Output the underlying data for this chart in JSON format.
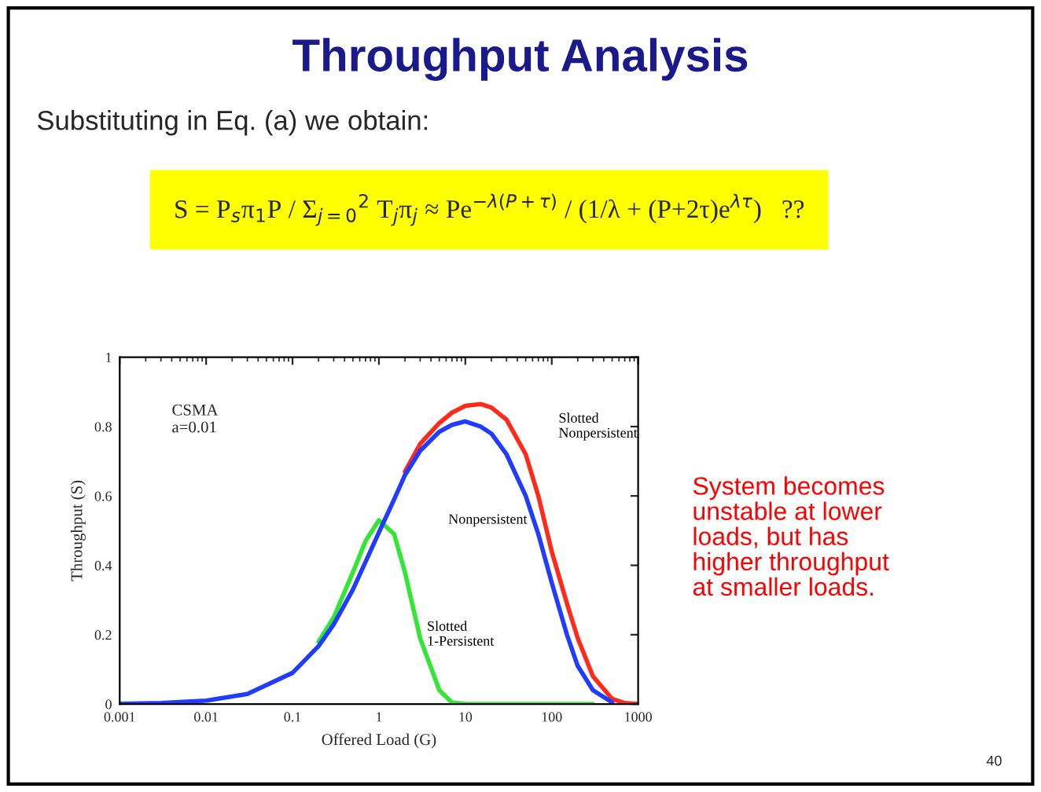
{
  "chart_data": {
    "type": "line",
    "title": "Throughput Analysis",
    "subtitle": "Substituting in Eq. (a) we obtain:",
    "xlabel": "Offered Load (G)",
    "ylabel": "Throughput (S)",
    "log": "x",
    "x": [
      0.001,
      0.003,
      0.01,
      0.03,
      0.1,
      0.2,
      0.3,
      0.5,
      0.7,
      1,
      1.5,
      2,
      3,
      5,
      7,
      10,
      15,
      20,
      30,
      50,
      70,
      100,
      150,
      200,
      300,
      500,
      700,
      1000
    ],
    "series": [
      {
        "name": "Slotted Nonpersistent",
        "color": "#ff2a1a",
        "values": [
          null,
          null,
          null,
          null,
          null,
          null,
          null,
          null,
          null,
          null,
          null,
          0.67,
          0.75,
          0.81,
          0.84,
          0.86,
          0.865,
          0.855,
          0.82,
          0.72,
          0.6,
          0.44,
          0.29,
          0.19,
          0.08,
          0.015,
          0.003,
          0
        ]
      },
      {
        "name": "Nonpersistent",
        "color": "#1f3cff",
        "values": [
          0.001,
          0.003,
          0.01,
          0.029,
          0.09,
          0.167,
          0.23,
          0.33,
          0.41,
          0.495,
          0.59,
          0.66,
          0.73,
          0.785,
          0.805,
          0.815,
          0.8,
          0.78,
          0.72,
          0.6,
          0.49,
          0.35,
          0.2,
          0.11,
          0.04,
          0.005,
          null,
          null
        ]
      },
      {
        "name": "Slotted 1-Persistent",
        "color": "#33e633",
        "values": [
          null,
          null,
          null,
          null,
          null,
          0.18,
          0.25,
          0.38,
          0.47,
          0.53,
          0.49,
          0.38,
          0.19,
          0.04,
          0.005,
          0,
          0,
          0,
          0,
          0,
          0,
          0,
          0,
          0,
          0,
          null,
          null,
          null
        ]
      }
    ],
    "xlim": [
      0.001,
      1000
    ],
    "xticks": [
      0.001,
      0.01,
      0.1,
      1,
      10,
      100,
      1000
    ],
    "ylim": [
      0,
      1
    ],
    "yticks": [
      0,
      0.2,
      0.4,
      0.6,
      0.8,
      1
    ],
    "annotations": [
      "S = P$_{s}$π$_{1}$P / Σ$_{j=0}$$^{2}$ T$_{j}$π$_{j}$ ≈ Pe$^{−λ(P+τ)}$ / (1/λ + (P+2τ)e$^{λτ}$)   ??",
      "CSMA\na=0.01",
      "System becomes\nunstable at lower\nloads, but has\nhigher throughput\nat smaller loads.",
      "40"
    ]
  }
}
